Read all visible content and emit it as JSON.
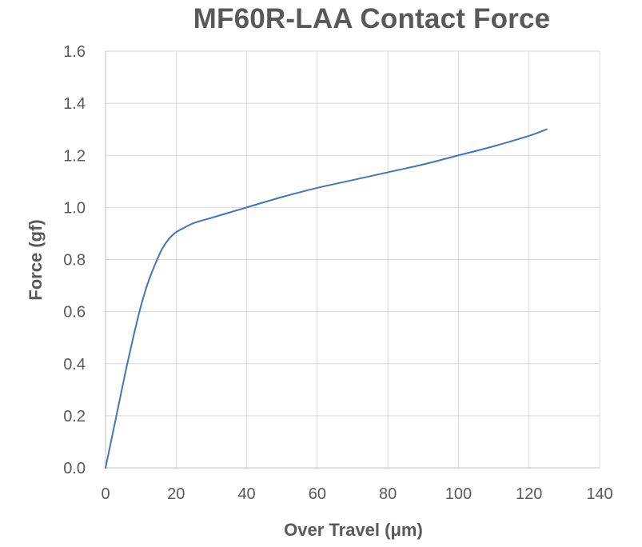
{
  "chart_data": {
    "type": "line",
    "title": "MF60R-LAA Contact Force",
    "xlabel": "Over Travel (μm)",
    "ylabel": "Force (gf)",
    "xlim": [
      0,
      140
    ],
    "ylim": [
      0,
      1.6
    ],
    "x_ticks": [
      "0",
      "20",
      "40",
      "60",
      "80",
      "100",
      "120",
      "140"
    ],
    "y_ticks": [
      "0.0",
      "0.2",
      "0.4",
      "0.6",
      "0.8",
      "1.0",
      "1.2",
      "1.4",
      "1.6"
    ],
    "grid": true,
    "legend": "none",
    "series": [
      {
        "color": "#4472C4",
        "x": [
          0,
          2,
          4,
          6,
          8,
          10,
          12,
          14,
          16,
          18,
          20,
          22,
          25,
          30,
          35,
          40,
          50,
          60,
          70,
          80,
          90,
          100,
          110,
          120,
          125
        ],
        "y": [
          0.0,
          0.13,
          0.26,
          0.39,
          0.51,
          0.62,
          0.71,
          0.78,
          0.84,
          0.88,
          0.905,
          0.92,
          0.94,
          0.96,
          0.98,
          1.0,
          1.04,
          1.075,
          1.105,
          1.135,
          1.165,
          1.2,
          1.235,
          1.275,
          1.3
        ]
      }
    ]
  }
}
